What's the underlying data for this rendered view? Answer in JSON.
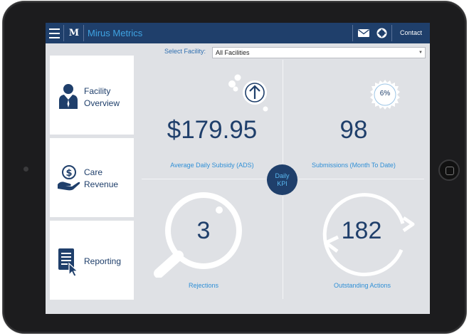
{
  "header": {
    "app_name": "Mirus Metrics",
    "logo_text": "M",
    "contact_label": "Contact"
  },
  "filter": {
    "label": "Select Facility:",
    "selected": "All Facilities"
  },
  "sidebar": {
    "items": [
      {
        "line1": "Facility",
        "line2": "Overview",
        "icon": "person-icon"
      },
      {
        "line1": "Care",
        "line2": "Revenue",
        "icon": "dollar-hand-icon"
      },
      {
        "line1": "Reporting",
        "line2": "",
        "icon": "document-cursor-icon"
      }
    ]
  },
  "kpi": {
    "center_line1": "Daily",
    "center_line2": "KPI",
    "ads": {
      "value": "$179.95",
      "label": "Average Daily Subsidy (ADS)"
    },
    "submissions": {
      "value": "98",
      "label": "Submissions (Month To Date)",
      "badge": "6%"
    },
    "rejections": {
      "value": "3",
      "label": "Rejections"
    },
    "outstanding": {
      "value": "182",
      "label": "Outstanding Actions"
    }
  },
  "colors": {
    "navy": "#1f3f6b",
    "accent": "#2f8fd6",
    "background": "#dfe1e5"
  }
}
